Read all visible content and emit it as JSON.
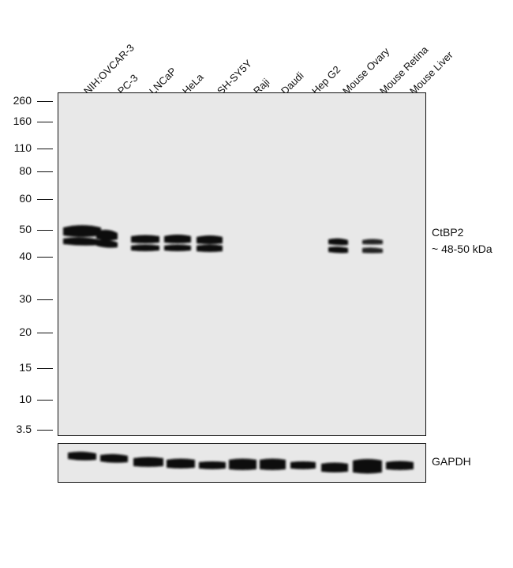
{
  "lanes": [
    {
      "label": "NIH:OVCAR-3"
    },
    {
      "label": "PC-3"
    },
    {
      "label": "LNCaP"
    },
    {
      "label": "HeLa"
    },
    {
      "label": "SH-SY5Y"
    },
    {
      "label": "Raji"
    },
    {
      "label": "Daudi"
    },
    {
      "label": "Hep G2"
    },
    {
      "label": "Mouse Ovary"
    },
    {
      "label": "Mouse Retina"
    },
    {
      "label": "Mouse Liver"
    }
  ],
  "markers": [
    {
      "label": "260",
      "kda": 260
    },
    {
      "label": "160",
      "kda": 160
    },
    {
      "label": "110",
      "kda": 110
    },
    {
      "label": "80",
      "kda": 80
    },
    {
      "label": "60",
      "kda": 60
    },
    {
      "label": "50",
      "kda": 50
    },
    {
      "label": "40",
      "kda": 40
    },
    {
      "label": "30",
      "kda": 30
    },
    {
      "label": "20",
      "kda": 20
    },
    {
      "label": "15",
      "kda": 15
    },
    {
      "label": "10",
      "kda": 10
    },
    {
      "label": "3.5",
      "kda": 3.5
    }
  ],
  "target": {
    "name": "CtBP2",
    "size": "~ 48-50 kDa"
  },
  "loading_control": {
    "name": "GAPDH"
  },
  "colors": {
    "band": "#0a0a0a",
    "membrane": "#e8e8e8",
    "frame": "#111111"
  }
}
